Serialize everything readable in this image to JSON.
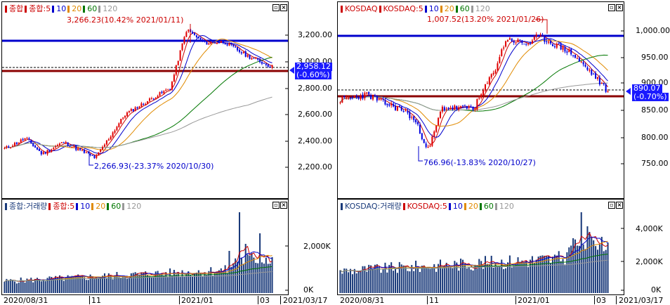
{
  "left_chart": {
    "price": {
      "legend": [
        {
          "label": "종합",
          "color": "#cc0000"
        },
        {
          "label": "종합:5",
          "color": "#cc0000"
        },
        {
          "label": "10",
          "color": "#0000cc"
        },
        {
          "label": "20",
          "color": "#e08a00"
        },
        {
          "label": "60",
          "color": "#007700"
        },
        {
          "label": "120",
          "color": "#999999"
        }
      ],
      "y_ticks": [
        "3,200.00",
        "3,000.00",
        "2,800.00",
        "2,600.00",
        "2,400.00",
        "2,200.00"
      ],
      "high_annotation": "3,266.23(10.42% 2021/01/11)",
      "low_annotation": "2,266.93(-23.37% 2020/10/30)",
      "price_tag_value": "2,958.12",
      "price_tag_change": "(-0.60%)"
    },
    "volume": {
      "legend": [
        {
          "label": "종합:거래량",
          "color": "#1a3a7a"
        },
        {
          "label": "종합:5",
          "color": "#cc0000"
        },
        {
          "label": "10",
          "color": "#0000cc"
        },
        {
          "label": "20",
          "color": "#e08a00"
        },
        {
          "label": "60",
          "color": "#007700"
        },
        {
          "label": "120",
          "color": "#999999"
        }
      ],
      "y_ticks": [
        "2,000K",
        "0K"
      ]
    },
    "x_labels": [
      "2020/08/31",
      "11",
      "2021/01",
      "03",
      "2021/03/17"
    ]
  },
  "right_chart": {
    "price": {
      "legend": [
        {
          "label": "KOSDAQ",
          "color": "#cc0000"
        },
        {
          "label": "KOSDAQ:5",
          "color": "#cc0000"
        },
        {
          "label": "10",
          "color": "#0000cc"
        },
        {
          "label": "20",
          "color": "#e08a00"
        },
        {
          "label": "60",
          "color": "#007700"
        },
        {
          "label": "120",
          "color": "#999999"
        }
      ],
      "y_ticks": [
        "1,000.00",
        "950.00",
        "900.00",
        "850.00",
        "800.00",
        "750.00"
      ],
      "high_annotation": "1,007.52(13.20% 2021/01/26)",
      "low_annotation": "766.96(-13.83% 2020/10/27)",
      "price_tag_value": "890.07",
      "price_tag_change": "(-0.70%)"
    },
    "volume": {
      "legend": [
        {
          "label": "KOSDAQ:거래량",
          "color": "#1a3a7a"
        },
        {
          "label": "KOSDAQ:5",
          "color": "#cc0000"
        },
        {
          "label": "10",
          "color": "#0000cc"
        },
        {
          "label": "20",
          "color": "#e08a00"
        },
        {
          "label": "60",
          "color": "#007700"
        },
        {
          "label": "120",
          "color": "#999999"
        }
      ],
      "y_ticks": [
        "4,000K",
        "2,000K",
        "0K"
      ]
    },
    "x_labels": [
      "2020/08/31",
      "11",
      "2021/01",
      "03",
      "2021/03/17"
    ]
  },
  "colors": {
    "up_candle": "#e00000",
    "down_candle": "#0000e0",
    "resistance_line": "#0000cc",
    "support_line": "#8b0000",
    "volume_bar": "#1a3a7a",
    "price_tag_bg": "#1a1aff"
  },
  "window_buttons": {
    "restore": "▫",
    "close": "×"
  }
}
